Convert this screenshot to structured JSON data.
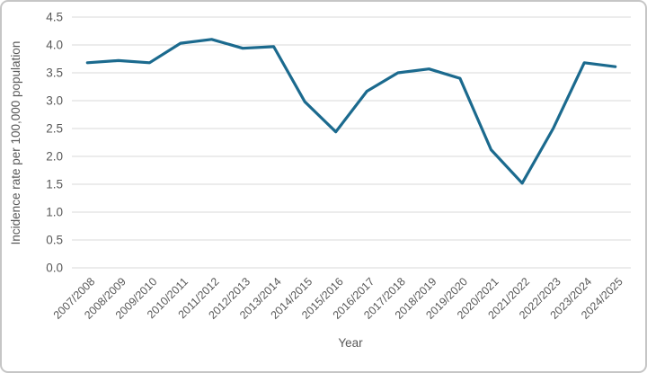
{
  "chart_data": {
    "type": "line",
    "title": "",
    "xlabel": "Year",
    "ylabel": "Incidence rate per 100,000 population",
    "categories": [
      "2007/2008",
      "2008/2009",
      "2009/2010",
      "2010/2011",
      "2011/2012",
      "2012/2013",
      "2013/2014",
      "2014/2015",
      "2015/2016",
      "2016/2017",
      "2017/2018",
      "2018/2019",
      "2019/2020",
      "2020/2021",
      "2021/2022",
      "2022/2023",
      "2023/2024",
      "2024/2025"
    ],
    "values": [
      3.68,
      3.72,
      3.68,
      4.03,
      4.1,
      3.94,
      3.97,
      2.98,
      2.44,
      3.17,
      3.5,
      3.57,
      3.4,
      2.12,
      1.52,
      2.5,
      3.68,
      3.61
    ],
    "ylim": [
      0.0,
      4.5
    ],
    "yticks": [
      "0.0",
      "0.5",
      "1.0",
      "1.5",
      "2.0",
      "2.5",
      "3.0",
      "3.5",
      "4.0",
      "4.5"
    ],
    "grid": "horizontal",
    "legend": "none",
    "x_label_rotation_deg": 45,
    "colors": {
      "line": "#1b6a8e",
      "gridline": "#d9d9d9",
      "text": "#595959",
      "panel_border": "#c6c6c6",
      "background": "#ffffff"
    }
  }
}
